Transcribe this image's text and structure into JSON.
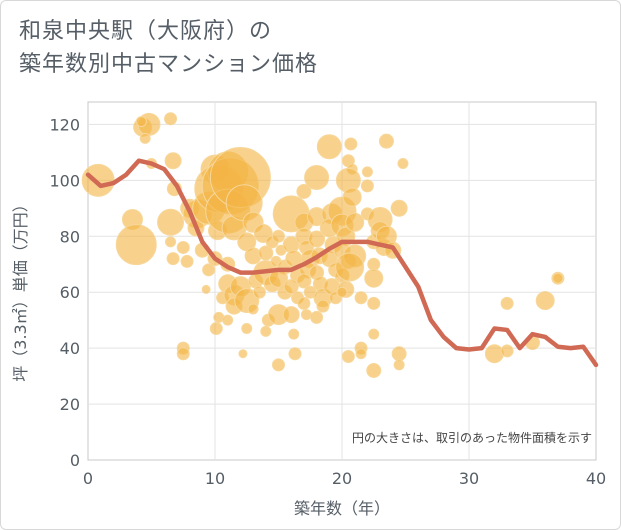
{
  "title_line1": "和泉中央駅（大阪府）の",
  "title_line2": "築年数別中古マンション価格",
  "note": "円の大きさは、取引のあった物件面積を示す",
  "chart_data": {
    "type": "scatter",
    "xlabel": "築年数（年）",
    "ylabel": "坪（3.3㎡）単価（万円）",
    "xlim": [
      0,
      40
    ],
    "ylim": [
      0,
      128
    ],
    "xticks": [
      0,
      10,
      20,
      30,
      40
    ],
    "yticks": [
      0,
      20,
      40,
      60,
      80,
      100,
      120
    ],
    "grid": true,
    "colors": {
      "bubble_fill": "#f3b445",
      "bubble_stroke": "#f7d79a",
      "line": "#d06a55",
      "grid": "#e3e3e3",
      "frame": "#c8c8c8"
    },
    "bubbles": [
      {
        "x": 0.8,
        "y": 100,
        "s": 16
      },
      {
        "x": 3.5,
        "y": 86,
        "s": 10
      },
      {
        "x": 3.8,
        "y": 77,
        "s": 20
      },
      {
        "x": 4.3,
        "y": 119,
        "s": 9
      },
      {
        "x": 4.8,
        "y": 120,
        "s": 11
      },
      {
        "x": 4.5,
        "y": 115,
        "s": 5
      },
      {
        "x": 4.2,
        "y": 121,
        "s": 5
      },
      {
        "x": 5,
        "y": 106,
        "s": 5
      },
      {
        "x": 6.5,
        "y": 122,
        "s": 6
      },
      {
        "x": 6.7,
        "y": 107,
        "s": 8
      },
      {
        "x": 6.8,
        "y": 97,
        "s": 7
      },
      {
        "x": 6.5,
        "y": 85,
        "s": 13
      },
      {
        "x": 6.5,
        "y": 78,
        "s": 5
      },
      {
        "x": 6.7,
        "y": 72,
        "s": 6
      },
      {
        "x": 7.5,
        "y": 76,
        "s": 6
      },
      {
        "x": 7.8,
        "y": 71,
        "s": 6
      },
      {
        "x": 7.5,
        "y": 40,
        "s": 6
      },
      {
        "x": 7.5,
        "y": 38,
        "s": 6
      },
      {
        "x": 8,
        "y": 90,
        "s": 9
      },
      {
        "x": 8.6,
        "y": 88,
        "s": 14
      },
      {
        "x": 8.5,
        "y": 83,
        "s": 8
      },
      {
        "x": 9,
        "y": 75,
        "s": 7
      },
      {
        "x": 9.5,
        "y": 90,
        "s": 16
      },
      {
        "x": 9.5,
        "y": 68,
        "s": 6
      },
      {
        "x": 9.3,
        "y": 61,
        "s": 4
      },
      {
        "x": 10,
        "y": 104,
        "s": 14
      },
      {
        "x": 10.3,
        "y": 97,
        "s": 24
      },
      {
        "x": 10.2,
        "y": 82,
        "s": 9
      },
      {
        "x": 10,
        "y": 72,
        "s": 7
      },
      {
        "x": 10.1,
        "y": 47,
        "s": 6
      },
      {
        "x": 10.3,
        "y": 51,
        "s": 5
      },
      {
        "x": 10.6,
        "y": 58,
        "s": 6
      },
      {
        "x": 11,
        "y": 103,
        "s": 20
      },
      {
        "x": 11.2,
        "y": 98,
        "s": 28
      },
      {
        "x": 11,
        "y": 89,
        "s": 22
      },
      {
        "x": 11.5,
        "y": 83,
        "s": 12
      },
      {
        "x": 11,
        "y": 70,
        "s": 7
      },
      {
        "x": 11,
        "y": 63,
        "s": 9
      },
      {
        "x": 11.5,
        "y": 59,
        "s": 10
      },
      {
        "x": 11.5,
        "y": 55,
        "s": 8
      },
      {
        "x": 11,
        "y": 50,
        "s": 5
      },
      {
        "x": 12,
        "y": 101,
        "s": 30
      },
      {
        "x": 12.3,
        "y": 92,
        "s": 18
      },
      {
        "x": 12.5,
        "y": 78,
        "s": 9
      },
      {
        "x": 12,
        "y": 62,
        "s": 10
      },
      {
        "x": 12.5,
        "y": 57,
        "s": 12
      },
      {
        "x": 12.5,
        "y": 47,
        "s": 5
      },
      {
        "x": 12.2,
        "y": 38,
        "s": 4
      },
      {
        "x": 13,
        "y": 85,
        "s": 10
      },
      {
        "x": 13,
        "y": 73,
        "s": 8
      },
      {
        "x": 13.2,
        "y": 64,
        "s": 7
      },
      {
        "x": 13.5,
        "y": 60,
        "s": 6
      },
      {
        "x": 13,
        "y": 54,
        "s": 5
      },
      {
        "x": 13.8,
        "y": 81,
        "s": 9
      },
      {
        "x": 14,
        "y": 74,
        "s": 7
      },
      {
        "x": 14,
        "y": 67,
        "s": 12
      },
      {
        "x": 14.5,
        "y": 63,
        "s": 8
      },
      {
        "x": 14.2,
        "y": 50,
        "s": 6
      },
      {
        "x": 14,
        "y": 46,
        "s": 5
      },
      {
        "x": 14.5,
        "y": 78,
        "s": 6
      },
      {
        "x": 14.8,
        "y": 71,
        "s": 5
      },
      {
        "x": 15,
        "y": 80,
        "s": 6
      },
      {
        "x": 15.2,
        "y": 75,
        "s": 5
      },
      {
        "x": 15.5,
        "y": 69,
        "s": 7
      },
      {
        "x": 15,
        "y": 65,
        "s": 9
      },
      {
        "x": 15.5,
        "y": 60,
        "s": 7
      },
      {
        "x": 15,
        "y": 52,
        "s": 10
      },
      {
        "x": 15,
        "y": 34,
        "s": 6
      },
      {
        "x": 16,
        "y": 88,
        "s": 18
      },
      {
        "x": 16,
        "y": 77,
        "s": 8
      },
      {
        "x": 16.2,
        "y": 72,
        "s": 8
      },
      {
        "x": 16.5,
        "y": 66,
        "s": 7
      },
      {
        "x": 16,
        "y": 62,
        "s": 7
      },
      {
        "x": 16.5,
        "y": 58,
        "s": 6
      },
      {
        "x": 16,
        "y": 52,
        "s": 8
      },
      {
        "x": 16.2,
        "y": 45,
        "s": 5
      },
      {
        "x": 16.3,
        "y": 38,
        "s": 6
      },
      {
        "x": 17,
        "y": 96,
        "s": 7
      },
      {
        "x": 17,
        "y": 85,
        "s": 9
      },
      {
        "x": 17,
        "y": 80,
        "s": 8
      },
      {
        "x": 17.2,
        "y": 76,
        "s": 7
      },
      {
        "x": 17.5,
        "y": 72,
        "s": 9
      },
      {
        "x": 17.3,
        "y": 68,
        "s": 8
      },
      {
        "x": 17,
        "y": 64,
        "s": 7
      },
      {
        "x": 17.5,
        "y": 60,
        "s": 6
      },
      {
        "x": 17,
        "y": 56,
        "s": 6
      },
      {
        "x": 17.2,
        "y": 52,
        "s": 5
      },
      {
        "x": 18,
        "y": 101,
        "s": 12
      },
      {
        "x": 18,
        "y": 87,
        "s": 9
      },
      {
        "x": 18,
        "y": 79,
        "s": 8
      },
      {
        "x": 18.2,
        "y": 73,
        "s": 8
      },
      {
        "x": 18,
        "y": 67,
        "s": 7
      },
      {
        "x": 18.3,
        "y": 63,
        "s": 7
      },
      {
        "x": 18.5,
        "y": 58,
        "s": 9
      },
      {
        "x": 18,
        "y": 51,
        "s": 6
      },
      {
        "x": 18.5,
        "y": 55,
        "s": 6
      },
      {
        "x": 19,
        "y": 112,
        "s": 12
      },
      {
        "x": 19.2,
        "y": 88,
        "s": 10
      },
      {
        "x": 19,
        "y": 83,
        "s": 9
      },
      {
        "x": 19.3,
        "y": 77,
        "s": 8
      },
      {
        "x": 19,
        "y": 72,
        "s": 8
      },
      {
        "x": 19.5,
        "y": 68,
        "s": 7
      },
      {
        "x": 19.2,
        "y": 62,
        "s": 8
      },
      {
        "x": 19.5,
        "y": 58,
        "s": 6
      },
      {
        "x": 20,
        "y": 89,
        "s": 14
      },
      {
        "x": 20,
        "y": 84,
        "s": 11
      },
      {
        "x": 20.3,
        "y": 80,
        "s": 9
      },
      {
        "x": 20,
        "y": 75,
        "s": 8
      },
      {
        "x": 20.5,
        "y": 71,
        "s": 7
      },
      {
        "x": 20,
        "y": 66,
        "s": 7
      },
      {
        "x": 20.3,
        "y": 61,
        "s": 8
      },
      {
        "x": 20,
        "y": 60,
        "s": 5
      },
      {
        "x": 20.7,
        "y": 113,
        "s": 6
      },
      {
        "x": 20.5,
        "y": 107,
        "s": 6
      },
      {
        "x": 20.8,
        "y": 104,
        "s": 5
      },
      {
        "x": 20.5,
        "y": 100,
        "s": 12
      },
      {
        "x": 20.8,
        "y": 94,
        "s": 9
      },
      {
        "x": 21,
        "y": 85,
        "s": 9
      },
      {
        "x": 21,
        "y": 73,
        "s": 11
      },
      {
        "x": 20.6,
        "y": 69,
        "s": 14
      },
      {
        "x": 20.5,
        "y": 37,
        "s": 6
      },
      {
        "x": 21.5,
        "y": 58,
        "s": 6
      },
      {
        "x": 21.5,
        "y": 40,
        "s": 6
      },
      {
        "x": 21.5,
        "y": 38,
        "s": 5
      },
      {
        "x": 22,
        "y": 103,
        "s": 5
      },
      {
        "x": 22,
        "y": 98,
        "s": 6
      },
      {
        "x": 22,
        "y": 88,
        "s": 6
      },
      {
        "x": 22.5,
        "y": 78,
        "s": 7
      },
      {
        "x": 22.5,
        "y": 70,
        "s": 6
      },
      {
        "x": 22.5,
        "y": 65,
        "s": 9
      },
      {
        "x": 22.5,
        "y": 56,
        "s": 6
      },
      {
        "x": 22.5,
        "y": 45,
        "s": 5
      },
      {
        "x": 22.5,
        "y": 32,
        "s": 7
      },
      {
        "x": 23,
        "y": 86,
        "s": 12
      },
      {
        "x": 23,
        "y": 82,
        "s": 9
      },
      {
        "x": 23.3,
        "y": 76,
        "s": 8
      },
      {
        "x": 23.5,
        "y": 80,
        "s": 10
      },
      {
        "x": 23.5,
        "y": 114,
        "s": 7
      },
      {
        "x": 24,
        "y": 75,
        "s": 8
      },
      {
        "x": 24.5,
        "y": 90,
        "s": 8
      },
      {
        "x": 24.5,
        "y": 38,
        "s": 7
      },
      {
        "x": 24.5,
        "y": 34,
        "s": 5
      },
      {
        "x": 24.8,
        "y": 106,
        "s": 5
      },
      {
        "x": 32,
        "y": 38,
        "s": 9
      },
      {
        "x": 33,
        "y": 56,
        "s": 6
      },
      {
        "x": 33,
        "y": 39,
        "s": 6
      },
      {
        "x": 35,
        "y": 42,
        "s": 7
      },
      {
        "x": 36,
        "y": 57,
        "s": 9
      },
      {
        "x": 37,
        "y": 65,
        "s": 6
      },
      {
        "x": 37,
        "y": 65,
        "s": 5
      }
    ],
    "line": {
      "x": [
        0,
        1,
        2,
        3,
        4,
        5,
        6,
        7,
        8,
        9,
        10,
        11,
        12,
        13,
        14,
        15,
        16,
        17,
        18,
        19,
        20,
        21,
        22,
        23,
        24,
        25,
        26,
        27,
        28,
        29,
        30,
        31,
        32,
        33,
        34,
        35,
        36,
        37,
        38,
        39,
        40
      ],
      "y": [
        102,
        98,
        99,
        102,
        107,
        106,
        104,
        98,
        89,
        78,
        72,
        69,
        67,
        67,
        67.5,
        68,
        68,
        70,
        72.5,
        75.5,
        78,
        78,
        78,
        77,
        76,
        69,
        62,
        50,
        44,
        40,
        39.5,
        40,
        47,
        46.5,
        40,
        45,
        44,
        40.5,
        40,
        40.5,
        34
      ]
    }
  }
}
